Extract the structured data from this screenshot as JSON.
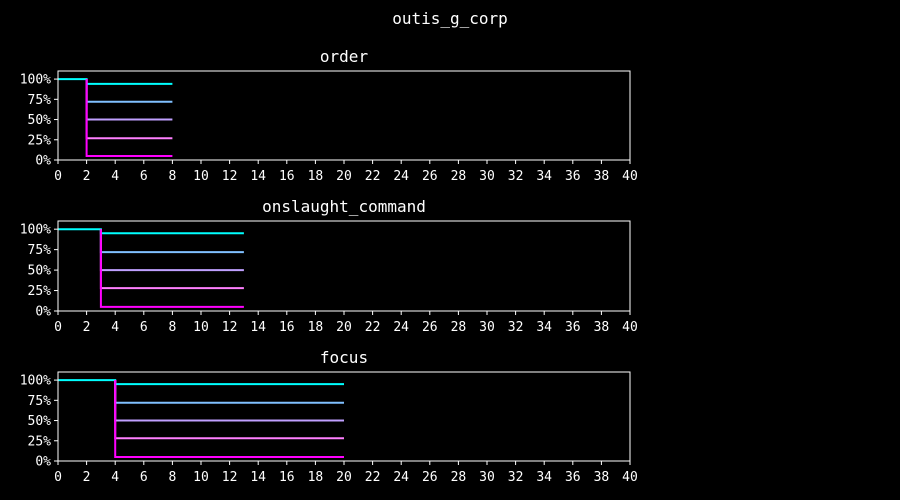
{
  "figure": {
    "title": "outis_g_corp"
  },
  "chart_data": [
    {
      "type": "line",
      "title": "order",
      "xlim": [
        0,
        40
      ],
      "ylim": [
        0,
        110
      ],
      "x_ticks": [
        0,
        2,
        4,
        6,
        8,
        10,
        12,
        14,
        16,
        18,
        20,
        22,
        24,
        26,
        28,
        30,
        32,
        34,
        36,
        38,
        40
      ],
      "y_ticks": [
        0,
        25,
        50,
        75,
        100
      ],
      "y_tick_labels": [
        "0%",
        "25%",
        "50%",
        "75%",
        "100%"
      ],
      "grid": false,
      "series": [
        {
          "color": "#00ffff",
          "points": [
            [
              0,
              100
            ],
            [
              2,
              100
            ],
            [
              2,
              94
            ],
            [
              8,
              94
            ]
          ]
        },
        {
          "color": "#80c0ff",
          "points": [
            [
              2,
              100
            ],
            [
              2,
              72
            ],
            [
              8,
              72
            ]
          ]
        },
        {
          "color": "#c0a0ff",
          "points": [
            [
              2,
              100
            ],
            [
              2,
              50
            ],
            [
              8,
              50
            ]
          ]
        },
        {
          "color": "#ff80ff",
          "points": [
            [
              2,
              100
            ],
            [
              2,
              27
            ],
            [
              8,
              27
            ]
          ]
        },
        {
          "color": "#ff00ff",
          "points": [
            [
              2,
              100
            ],
            [
              2,
              5
            ],
            [
              8,
              5
            ]
          ]
        }
      ]
    },
    {
      "type": "line",
      "title": "onslaught_command",
      "xlim": [
        0,
        40
      ],
      "ylim": [
        0,
        110
      ],
      "x_ticks": [
        0,
        2,
        4,
        6,
        8,
        10,
        12,
        14,
        16,
        18,
        20,
        22,
        24,
        26,
        28,
        30,
        32,
        34,
        36,
        38,
        40
      ],
      "y_ticks": [
        0,
        25,
        50,
        75,
        100
      ],
      "y_tick_labels": [
        "0%",
        "25%",
        "50%",
        "75%",
        "100%"
      ],
      "grid": false,
      "series": [
        {
          "color": "#00ffff",
          "points": [
            [
              0,
              100
            ],
            [
              3,
              100
            ],
            [
              3,
              95
            ],
            [
              13,
              95
            ]
          ]
        },
        {
          "color": "#80c0ff",
          "points": [
            [
              3,
              100
            ],
            [
              3,
              72
            ],
            [
              13,
              72
            ]
          ]
        },
        {
          "color": "#c0a0ff",
          "points": [
            [
              3,
              100
            ],
            [
              3,
              50
            ],
            [
              13,
              50
            ]
          ]
        },
        {
          "color": "#ff80ff",
          "points": [
            [
              3,
              100
            ],
            [
              3,
              28
            ],
            [
              13,
              28
            ]
          ]
        },
        {
          "color": "#ff00ff",
          "points": [
            [
              3,
              100
            ],
            [
              3,
              5
            ],
            [
              13,
              5
            ]
          ]
        }
      ]
    },
    {
      "type": "line",
      "title": "focus",
      "xlim": [
        0,
        40
      ],
      "ylim": [
        0,
        110
      ],
      "x_ticks": [
        0,
        2,
        4,
        6,
        8,
        10,
        12,
        14,
        16,
        18,
        20,
        22,
        24,
        26,
        28,
        30,
        32,
        34,
        36,
        38,
        40
      ],
      "y_ticks": [
        0,
        25,
        50,
        75,
        100
      ],
      "y_tick_labels": [
        "0%",
        "25%",
        "50%",
        "75%",
        "100%"
      ],
      "grid": false,
      "series": [
        {
          "color": "#00ffff",
          "points": [
            [
              0,
              100
            ],
            [
              4,
              100
            ],
            [
              4,
              95
            ],
            [
              20,
              95
            ]
          ]
        },
        {
          "color": "#80c0ff",
          "points": [
            [
              4,
              100
            ],
            [
              4,
              72
            ],
            [
              20,
              72
            ]
          ]
        },
        {
          "color": "#c0a0ff",
          "points": [
            [
              4,
              100
            ],
            [
              4,
              50
            ],
            [
              20,
              50
            ]
          ]
        },
        {
          "color": "#ff80ff",
          "points": [
            [
              4,
              100
            ],
            [
              4,
              28
            ],
            [
              20,
              28
            ]
          ]
        },
        {
          "color": "#ff00ff",
          "points": [
            [
              4,
              100
            ],
            [
              4,
              5
            ],
            [
              20,
              5
            ]
          ]
        }
      ]
    }
  ]
}
